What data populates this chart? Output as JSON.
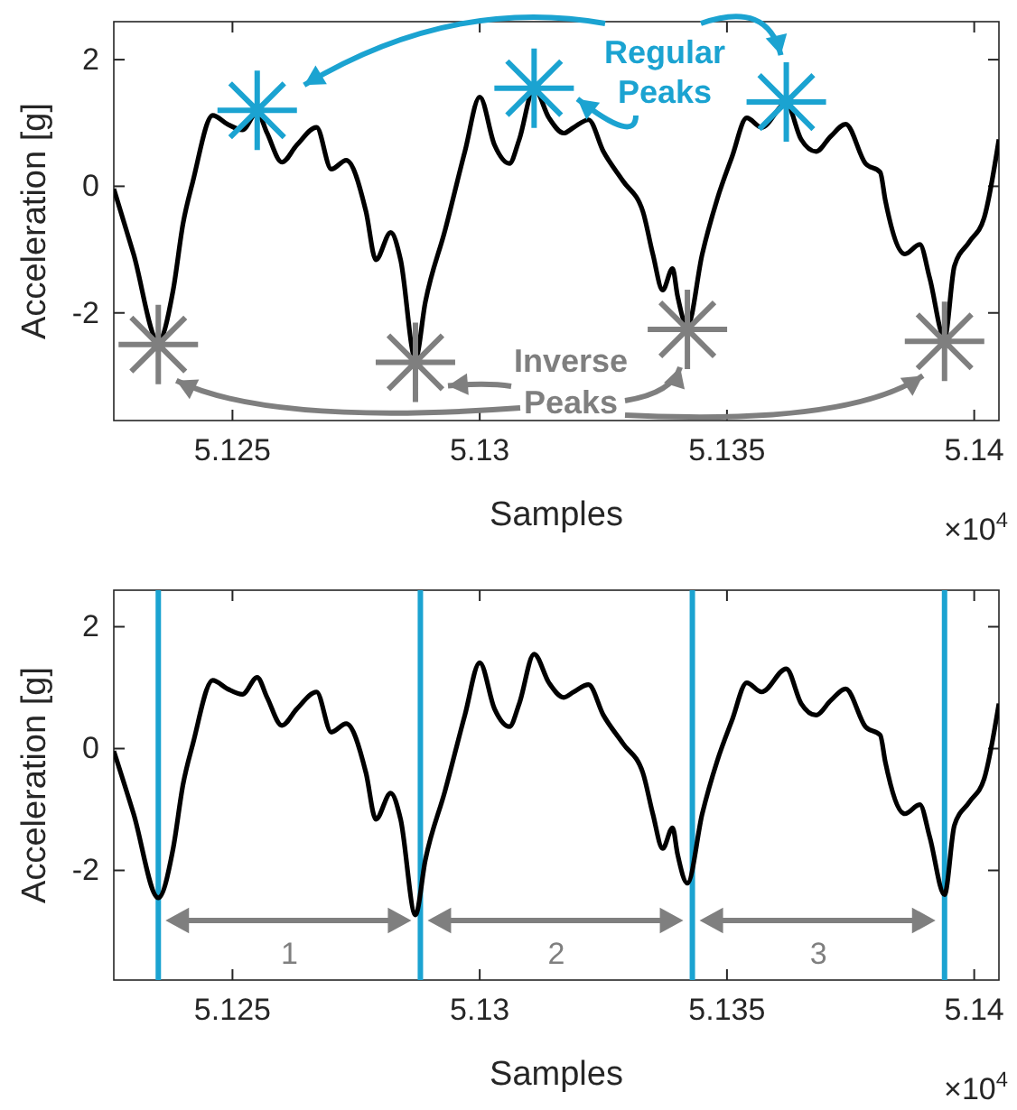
{
  "chart_data": [
    {
      "type": "line",
      "legend": "bottom right",
      "xlabel": "Samples",
      "ylabel": "Acceleration [g]",
      "xlim": [
        5.1226,
        5.1405
      ],
      "ylim": [
        -3.7,
        2.6
      ],
      "xticks": [
        5.125,
        5.13,
        5.135,
        5.14
      ],
      "yticks": [
        -2,
        0,
        2
      ],
      "annotations": [
        "×10$^{4}$"
      ],
      "x": [
        5.1226,
        5.123,
        5.1235,
        5.1238,
        5.124,
        5.1242,
        5.1246,
        5.1249,
        5.1252,
        5.1255,
        5.1257,
        5.126,
        5.1263,
        5.1267,
        5.127,
        5.1273,
        5.1277,
        5.1279,
        5.1282,
        5.1284,
        5.1287,
        5.1289,
        5.1293,
        5.1297,
        5.13,
        5.1303,
        5.1306,
        5.1308,
        5.1311,
        5.1314,
        5.1317,
        5.1319,
        5.1322,
        5.1325,
        5.1329,
        5.1333,
        5.1335,
        5.1337,
        5.1339,
        5.134,
        5.1342,
        5.1345,
        5.1348,
        5.1351,
        5.1354,
        5.1357,
        5.1362,
        5.1365,
        5.1368,
        5.1371,
        5.1374,
        5.1378,
        5.1381,
        5.1382,
        5.1386,
        5.1389,
        5.1391,
        5.1394,
        5.1396,
        5.1399,
        5.1402,
        5.1405
      ],
      "series": [
        {
          "color": "#000000",
          "values": [
            -0.04,
            -1.07,
            -2.45,
            -1.64,
            -0.59,
            0.08,
            1.12,
            0.98,
            0.89,
            1.17,
            0.84,
            0.38,
            0.65,
            0.93,
            0.27,
            0.41,
            -0.4,
            -1.16,
            -0.73,
            -1.16,
            -2.73,
            -1.83,
            -0.69,
            0.55,
            1.41,
            0.65,
            0.36,
            0.74,
            1.55,
            1.08,
            0.84,
            0.93,
            1.05,
            0.55,
            0.08,
            -0.4,
            -1.07,
            -1.64,
            -1.3,
            -1.73,
            -2.21,
            -1.07,
            -0.21,
            0.46,
            1.08,
            0.93,
            1.31,
            0.74,
            0.55,
            0.79,
            0.98,
            0.36,
            0.22,
            -0.21,
            -1.07,
            -0.92,
            -1.45,
            -2.4,
            -1.26,
            -0.88,
            -0.5,
            0.74
          ]
        },
        {
          "type": "scatter",
          "name": "Regular Peaks",
          "color": "#1ba3d1",
          "marker": "cross",
          "x": [
            5.1255,
            5.1311,
            5.1362
          ],
          "values": [
            1.2,
            1.55,
            1.33
          ]
        },
        {
          "type": "scatter",
          "name": "Inverse Peaks",
          "color": "#7f7f7f",
          "marker": "cross",
          "x": [
            5.1235,
            5.1287,
            5.1342,
            5.1394
          ],
          "values": [
            -2.5,
            -2.78,
            -2.26,
            -2.45
          ]
        }
      ]
    },
    {
      "type": "line",
      "xlabel": "Samples",
      "ylabel": "Acceleration [g]",
      "xlim": [
        5.1226,
        5.1405
      ],
      "ylim": [
        -3.8,
        2.6
      ],
      "xticks": [
        5.125,
        5.13,
        5.135,
        5.14
      ],
      "yticks": [
        -2,
        0,
        2
      ],
      "annotations": [
        "×10$^{4}$",
        "1",
        "2",
        "3"
      ],
      "ref_lines": [
        {
          "axis": "x",
          "value": 5.1235,
          "color": "#1ba3d1"
        },
        {
          "axis": "x",
          "value": 5.1288,
          "color": "#1ba3d1"
        },
        {
          "axis": "x",
          "value": 5.1343,
          "color": "#1ba3d1"
        },
        {
          "axis": "x",
          "value": 5.1394,
          "color": "#1ba3d1"
        }
      ],
      "x": [
        5.1226,
        5.123,
        5.1235,
        5.1238,
        5.124,
        5.1242,
        5.1246,
        5.1249,
        5.1252,
        5.1255,
        5.1257,
        5.126,
        5.1263,
        5.1267,
        5.127,
        5.1273,
        5.1277,
        5.1279,
        5.1282,
        5.1284,
        5.1287,
        5.1289,
        5.1293,
        5.1297,
        5.13,
        5.1303,
        5.1306,
        5.1308,
        5.1311,
        5.1314,
        5.1317,
        5.1319,
        5.1322,
        5.1325,
        5.1329,
        5.1333,
        5.1335,
        5.1337,
        5.1339,
        5.134,
        5.1342,
        5.1345,
        5.1348,
        5.1351,
        5.1354,
        5.1357,
        5.1362,
        5.1365,
        5.1368,
        5.1371,
        5.1374,
        5.1378,
        5.1381,
        5.1382,
        5.1386,
        5.1389,
        5.1391,
        5.1394,
        5.1396,
        5.1399,
        5.1402,
        5.1405
      ],
      "series": [
        {
          "color": "#000000",
          "values": [
            -0.04,
            -1.07,
            -2.45,
            -1.64,
            -0.59,
            0.08,
            1.12,
            0.98,
            0.89,
            1.17,
            0.84,
            0.38,
            0.65,
            0.93,
            0.27,
            0.41,
            -0.4,
            -1.16,
            -0.73,
            -1.16,
            -2.73,
            -1.83,
            -0.69,
            0.55,
            1.41,
            0.65,
            0.36,
            0.74,
            1.55,
            1.08,
            0.84,
            0.93,
            1.05,
            0.55,
            0.08,
            -0.4,
            -1.07,
            -1.64,
            -1.3,
            -1.73,
            -2.21,
            -1.07,
            -0.21,
            0.46,
            1.08,
            0.93,
            1.31,
            0.74,
            0.55,
            0.79,
            0.98,
            0.36,
            0.22,
            -0.21,
            -1.07,
            -0.92,
            -1.45,
            -2.4,
            -1.26,
            -0.88,
            -0.5,
            0.74
          ]
        }
      ]
    }
  ]
}
